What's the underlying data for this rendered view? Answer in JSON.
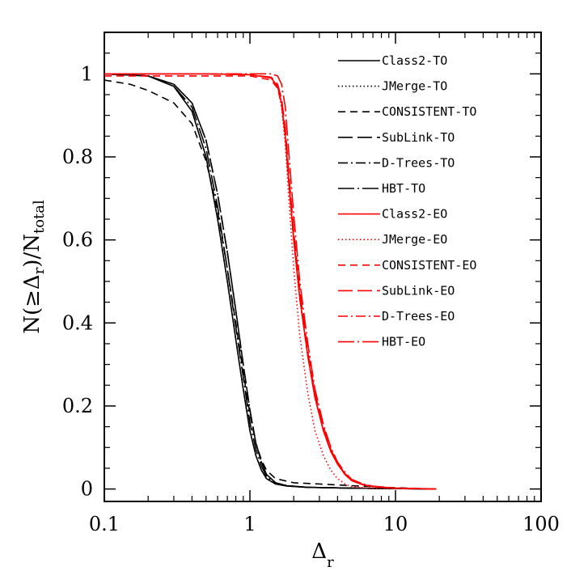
{
  "chart_data": {
    "type": "line",
    "title": "",
    "xlabel": "Δr",
    "ylabel": "N(≥Δr)/Ntotal",
    "xscale": "log",
    "xlim": [
      0.1,
      100
    ],
    "ylim": [
      -0.03,
      1.1
    ],
    "x_ticks": [
      "0.1",
      "1",
      "10",
      "100"
    ],
    "y_ticks": [
      "0",
      "0.2",
      "0.4",
      "0.6",
      "0.8",
      "1"
    ],
    "grid": false,
    "legend_position": "top-right",
    "series": [
      {
        "name": "Class2-TO",
        "color": "#000000",
        "dash": "solid",
        "x": [
          0.1,
          0.2,
          0.3,
          0.4,
          0.5,
          0.6,
          0.7,
          0.8,
          0.9,
          1.0,
          1.1,
          1.2,
          1.3,
          1.5,
          1.8,
          2.5,
          5,
          10,
          19
        ],
        "y": [
          1.0,
          0.995,
          0.97,
          0.91,
          0.8,
          0.65,
          0.5,
          0.36,
          0.24,
          0.14,
          0.08,
          0.045,
          0.025,
          0.012,
          0.007,
          0.004,
          0.002,
          0.001,
          0.0
        ]
      },
      {
        "name": "JMerge-TO",
        "color": "#000000",
        "dash": "dot",
        "x": [
          0.1,
          0.2,
          0.3,
          0.4,
          0.5,
          0.6,
          0.7,
          0.8,
          0.9,
          1.0,
          1.1,
          1.2,
          1.3,
          1.5,
          1.8,
          2.5,
          5,
          10,
          19
        ],
        "y": [
          1.0,
          0.995,
          0.97,
          0.91,
          0.8,
          0.65,
          0.5,
          0.36,
          0.24,
          0.14,
          0.08,
          0.045,
          0.025,
          0.012,
          0.007,
          0.004,
          0.002,
          0.001,
          0.0
        ]
      },
      {
        "name": "CONSISTENT-TO",
        "color": "#000000",
        "dash": "dashed",
        "x": [
          0.1,
          0.15,
          0.2,
          0.3,
          0.4,
          0.5,
          0.6,
          0.7,
          0.8,
          0.9,
          1.0,
          1.1,
          1.2,
          1.3,
          1.5,
          2,
          3,
          5,
          10,
          19
        ],
        "y": [
          0.985,
          0.975,
          0.96,
          0.93,
          0.88,
          0.79,
          0.67,
          0.53,
          0.4,
          0.28,
          0.18,
          0.11,
          0.07,
          0.045,
          0.025,
          0.015,
          0.012,
          0.008,
          0.003,
          0.0
        ]
      },
      {
        "name": "SubLink-TO",
        "color": "#000000",
        "dash": "longdash",
        "x": [
          0.1,
          0.2,
          0.3,
          0.4,
          0.5,
          0.6,
          0.7,
          0.8,
          0.9,
          1.0,
          1.1,
          1.2,
          1.3,
          1.5,
          1.8,
          2.5,
          5,
          10,
          19
        ],
        "y": [
          1.0,
          0.995,
          0.975,
          0.93,
          0.84,
          0.71,
          0.57,
          0.43,
          0.3,
          0.19,
          0.11,
          0.065,
          0.035,
          0.015,
          0.008,
          0.004,
          0.002,
          0.001,
          0.0
        ]
      },
      {
        "name": "D-Trees-TO",
        "color": "#000000",
        "dash": "dotdash",
        "x": [
          0.1,
          0.2,
          0.3,
          0.4,
          0.5,
          0.6,
          0.7,
          0.8,
          0.9,
          1.0,
          1.1,
          1.2,
          1.3,
          1.5,
          1.8,
          2.5,
          5,
          10,
          19
        ],
        "y": [
          1.0,
          0.995,
          0.975,
          0.93,
          0.84,
          0.71,
          0.57,
          0.43,
          0.3,
          0.19,
          0.11,
          0.065,
          0.035,
          0.015,
          0.008,
          0.004,
          0.002,
          0.001,
          0.0
        ]
      },
      {
        "name": "HBT-TO",
        "color": "#000000",
        "dash": "longdotdash",
        "x": [
          0.1,
          0.2,
          0.3,
          0.4,
          0.5,
          0.6,
          0.7,
          0.8,
          0.9,
          1.0,
          1.1,
          1.2,
          1.3,
          1.5,
          1.8,
          2.5,
          5,
          10,
          19
        ],
        "y": [
          1.0,
          0.995,
          0.97,
          0.92,
          0.82,
          0.68,
          0.53,
          0.39,
          0.27,
          0.16,
          0.095,
          0.055,
          0.03,
          0.013,
          0.007,
          0.004,
          0.002,
          0.001,
          0.0
        ]
      },
      {
        "name": "Class2-EO",
        "color": "#ff0000",
        "dash": "solid",
        "x": [
          0.1,
          0.5,
          1.0,
          1.4,
          1.55,
          1.65,
          1.75,
          1.85,
          2.0,
          2.2,
          2.5,
          2.8,
          3.2,
          3.6,
          4.0,
          4.5,
          5.0,
          6,
          7,
          10,
          19
        ],
        "y": [
          1.0,
          1.0,
          0.998,
          0.99,
          0.97,
          0.93,
          0.85,
          0.74,
          0.6,
          0.46,
          0.32,
          0.22,
          0.14,
          0.09,
          0.06,
          0.035,
          0.02,
          0.01,
          0.006,
          0.002,
          0.0
        ]
      },
      {
        "name": "JMerge-EO",
        "color": "#ff0000",
        "dash": "dot",
        "x": [
          0.1,
          0.5,
          1.0,
          1.4,
          1.55,
          1.65,
          1.75,
          1.85,
          2.0,
          2.2,
          2.5,
          2.8,
          3.2,
          3.6,
          4.0,
          4.5,
          5.0,
          6,
          7,
          10,
          19
        ],
        "y": [
          1.0,
          1.0,
          0.998,
          0.99,
          0.97,
          0.92,
          0.83,
          0.7,
          0.53,
          0.37,
          0.23,
          0.14,
          0.08,
          0.045,
          0.025,
          0.012,
          0.006,
          0.003,
          0.002,
          0.001,
          0.0
        ]
      },
      {
        "name": "CONSISTENT-EO",
        "color": "#ff0000",
        "dash": "dashed",
        "x": [
          0.1,
          0.5,
          1.0,
          1.4,
          1.55,
          1.65,
          1.75,
          1.85,
          2.0,
          2.2,
          2.5,
          2.8,
          3.2,
          3.6,
          4.0,
          4.5,
          5.0,
          6,
          7,
          10,
          19
        ],
        "y": [
          0.995,
          0.995,
          0.995,
          0.985,
          0.965,
          0.925,
          0.85,
          0.74,
          0.6,
          0.46,
          0.32,
          0.22,
          0.14,
          0.09,
          0.06,
          0.035,
          0.02,
          0.01,
          0.006,
          0.002,
          0.0
        ]
      },
      {
        "name": "SubLink-EO",
        "color": "#ff0000",
        "dash": "longdash",
        "x": [
          0.1,
          0.5,
          1.0,
          1.4,
          1.55,
          1.65,
          1.75,
          1.85,
          2.0,
          2.2,
          2.5,
          2.8,
          3.2,
          3.6,
          4.0,
          4.5,
          5.0,
          6,
          7,
          10,
          19
        ],
        "y": [
          1.0,
          1.0,
          0.998,
          0.992,
          0.975,
          0.94,
          0.87,
          0.76,
          0.62,
          0.48,
          0.33,
          0.23,
          0.15,
          0.095,
          0.062,
          0.037,
          0.021,
          0.011,
          0.006,
          0.002,
          0.0
        ]
      },
      {
        "name": "D-Trees-EO",
        "color": "#ff0000",
        "dash": "dotdash",
        "x": [
          0.1,
          0.5,
          1.0,
          1.4,
          1.55,
          1.65,
          1.75,
          1.85,
          2.0,
          2.2,
          2.5,
          2.8,
          3.2,
          3.6,
          4.0,
          4.5,
          5.0,
          6,
          7,
          10,
          19
        ],
        "y": [
          1.0,
          1.0,
          0.998,
          0.99,
          0.97,
          0.93,
          0.85,
          0.74,
          0.6,
          0.46,
          0.32,
          0.22,
          0.14,
          0.09,
          0.06,
          0.035,
          0.02,
          0.01,
          0.006,
          0.002,
          0.0
        ]
      },
      {
        "name": "HBT-EO",
        "color": "#ff0000",
        "dash": "longdotdash",
        "x": [
          0.1,
          0.5,
          1.0,
          1.4,
          1.55,
          1.65,
          1.75,
          1.85,
          2.0,
          2.2,
          2.5,
          2.8,
          3.2,
          3.6,
          4.0,
          4.5,
          5.0,
          6,
          7,
          10,
          19
        ],
        "y": [
          1.0,
          1.0,
          1.0,
          1.0,
          0.995,
          0.975,
          0.92,
          0.81,
          0.66,
          0.5,
          0.35,
          0.24,
          0.155,
          0.1,
          0.065,
          0.04,
          0.023,
          0.012,
          0.007,
          0.002,
          0.0
        ]
      }
    ]
  },
  "colors": {
    "to_color": "#000000",
    "eo_color": "#ff0000"
  }
}
